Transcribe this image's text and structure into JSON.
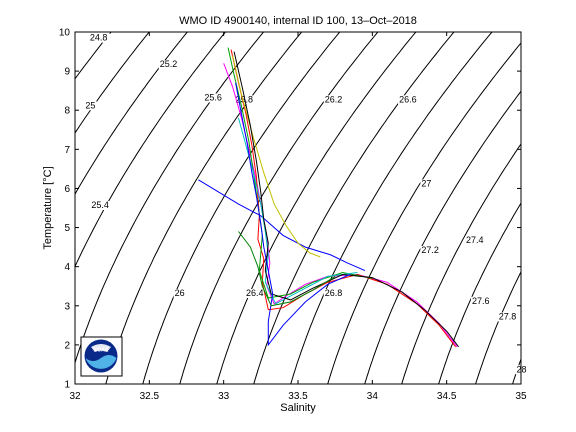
{
  "chart_data": {
    "type": "line",
    "title": "WMO ID 4900140, internal ID 100, 13–Oct–2018",
    "xlabel": "Salinity",
    "ylabel": "Temperature [°C]",
    "xlim": [
      32,
      35
    ],
    "ylim": [
      1,
      10
    ],
    "x_ticks": [
      "32",
      "32.5",
      "33",
      "33.5",
      "34",
      "34.5",
      "35"
    ],
    "y_ticks": [
      "1",
      "2",
      "3",
      "4",
      "5",
      "6",
      "7",
      "8",
      "9",
      "10"
    ],
    "x_tick_values": [
      32,
      32.5,
      33,
      33.5,
      34,
      34.5,
      35
    ],
    "y_tick_values": [
      1,
      2,
      3,
      4,
      5,
      6,
      7,
      8,
      9,
      10
    ],
    "grid": false,
    "logo": {
      "text": "NOAA",
      "icon": "noaa-logo"
    },
    "density_contours": [
      {
        "label": "24.8",
        "value": 24.8
      },
      {
        "label": "25",
        "value": 25.0
      },
      {
        "label": "25.2",
        "value": 25.2
      },
      {
        "label": "25.4",
        "value": 25.4
      },
      {
        "label": "25.6",
        "value": 25.6
      },
      {
        "label": "25.8",
        "value": 25.8
      },
      {
        "label": "26",
        "value": 26.0
      },
      {
        "label": "26.2",
        "value": 26.2
      },
      {
        "label": "26.4",
        "value": 26.4
      },
      {
        "label": "26.6",
        "value": 26.6
      },
      {
        "label": "26.8",
        "value": 26.8
      },
      {
        "label": "27",
        "value": 27.0
      },
      {
        "label": "27.2",
        "value": 27.2
      },
      {
        "label": "27.4",
        "value": 27.4
      },
      {
        "label": "27.6",
        "value": 27.6
      },
      {
        "label": "27.8",
        "value": 27.8
      },
      {
        "label": "28",
        "value": 28.0
      }
    ],
    "contour_label_points": [
      {
        "label": "24.8",
        "s": 32.1,
        "t": 9.78
      },
      {
        "label": "25.2",
        "s": 32.57,
        "t": 9.1
      },
      {
        "label": "25",
        "s": 32.07,
        "t": 8.05
      },
      {
        "label": "25.6",
        "s": 32.87,
        "t": 8.25
      },
      {
        "label": "25.8",
        "s": 33.08,
        "t": 8.2
      },
      {
        "label": "26.2",
        "s": 33.68,
        "t": 8.2
      },
      {
        "label": "26.6",
        "s": 34.18,
        "t": 8.2
      },
      {
        "label": "25.4",
        "s": 32.11,
        "t": 5.5
      },
      {
        "label": "27",
        "s": 34.33,
        "t": 6.05
      },
      {
        "label": "27.4",
        "s": 34.63,
        "t": 4.6
      },
      {
        "label": "27.2",
        "s": 34.33,
        "t": 4.35
      },
      {
        "label": "26",
        "s": 32.67,
        "t": 3.25
      },
      {
        "label": "26.4",
        "s": 33.15,
        "t": 3.25
      },
      {
        "label": "26.8",
        "s": 33.68,
        "t": 3.25
      },
      {
        "label": "27.6",
        "s": 34.67,
        "t": 3.05
      },
      {
        "label": "27.8",
        "s": 34.85,
        "t": 2.65
      },
      {
        "label": "28",
        "s": 34.97,
        "t": 1.3
      }
    ],
    "series": [
      {
        "color": "#0000ff",
        "points": [
          [
            32.83,
            6.22
          ],
          [
            33.1,
            5.6
          ],
          [
            33.25,
            5.3
          ],
          [
            33.4,
            4.8
          ],
          [
            33.55,
            4.5
          ],
          [
            33.72,
            4.3
          ],
          [
            33.83,
            4.1
          ],
          [
            33.95,
            3.9
          ]
        ]
      },
      {
        "color": "#ff00ff",
        "points": [
          [
            33.0,
            9.2
          ],
          [
            33.06,
            8.6
          ],
          [
            33.12,
            7.8
          ],
          [
            33.17,
            7.0
          ],
          [
            33.22,
            6.2
          ],
          [
            33.26,
            5.4
          ],
          [
            33.29,
            4.8
          ],
          [
            33.31,
            4.1
          ],
          [
            33.29,
            3.5
          ],
          [
            33.34,
            3.05
          ],
          [
            33.42,
            3.25
          ],
          [
            33.55,
            3.55
          ],
          [
            33.7,
            3.75
          ],
          [
            33.9,
            3.8
          ],
          [
            34.1,
            3.6
          ],
          [
            34.3,
            3.1
          ],
          [
            34.45,
            2.55
          ],
          [
            34.57,
            1.95
          ]
        ]
      },
      {
        "color": "#ff0000",
        "points": [
          [
            33.05,
            9.55
          ],
          [
            33.1,
            8.7
          ],
          [
            33.15,
            7.9
          ],
          [
            33.19,
            7.1
          ],
          [
            33.22,
            6.3
          ],
          [
            33.24,
            5.3
          ],
          [
            33.23,
            4.7
          ],
          [
            33.27,
            4.2
          ],
          [
            33.26,
            3.6
          ],
          [
            33.3,
            2.9
          ],
          [
            33.4,
            2.95
          ],
          [
            33.55,
            3.3
          ],
          [
            33.7,
            3.6
          ],
          [
            33.9,
            3.8
          ],
          [
            34.1,
            3.55
          ],
          [
            34.3,
            3.05
          ],
          [
            34.45,
            2.5
          ],
          [
            34.56,
            1.95
          ]
        ]
      },
      {
        "color": "#00a000",
        "points": [
          [
            33.03,
            9.6
          ],
          [
            33.07,
            8.9
          ],
          [
            33.12,
            8.1
          ],
          [
            33.17,
            7.2
          ],
          [
            33.2,
            6.4
          ],
          [
            33.23,
            5.6
          ],
          [
            33.26,
            4.8
          ],
          [
            33.24,
            3.9
          ],
          [
            33.3,
            3.2
          ],
          [
            33.45,
            3.3
          ],
          [
            33.6,
            3.6
          ],
          [
            33.8,
            3.85
          ],
          [
            34.0,
            3.7
          ]
        ]
      },
      {
        "color": "#00c0c0",
        "points": [
          [
            33.1,
            7.8
          ],
          [
            33.15,
            7.1
          ],
          [
            33.2,
            6.4
          ],
          [
            33.25,
            5.6
          ],
          [
            33.28,
            4.9
          ],
          [
            33.3,
            4.3
          ],
          [
            33.28,
            3.6
          ],
          [
            33.35,
            3.05
          ],
          [
            33.5,
            3.35
          ],
          [
            33.7,
            3.75
          ],
          [
            33.9,
            3.85
          ]
        ]
      },
      {
        "color": "#c0c000",
        "points": [
          [
            33.06,
            9.4
          ],
          [
            33.12,
            8.4
          ],
          [
            33.2,
            7.3
          ],
          [
            33.27,
            6.4
          ],
          [
            33.34,
            5.6
          ],
          [
            33.42,
            5.05
          ],
          [
            33.5,
            4.6
          ],
          [
            33.58,
            4.35
          ],
          [
            33.65,
            4.25
          ]
        ]
      },
      {
        "color": "#000000",
        "points": [
          [
            33.07,
            9.5
          ],
          [
            33.13,
            8.5
          ],
          [
            33.18,
            7.6
          ],
          [
            33.22,
            6.7
          ],
          [
            33.25,
            5.9
          ],
          [
            33.27,
            5.2
          ],
          [
            33.3,
            4.6
          ],
          [
            33.28,
            3.9
          ],
          [
            33.32,
            3.3
          ],
          [
            33.45,
            3.15
          ],
          [
            33.6,
            3.45
          ],
          [
            33.8,
            3.8
          ],
          [
            34.0,
            3.72
          ],
          [
            34.2,
            3.35
          ],
          [
            34.35,
            2.9
          ],
          [
            34.5,
            2.35
          ],
          [
            34.58,
            1.95
          ]
        ]
      },
      {
        "color": "#0000ff",
        "points": [
          [
            33.08,
            8.7
          ],
          [
            33.12,
            7.9
          ],
          [
            33.16,
            7.1
          ],
          [
            33.19,
            6.4
          ],
          [
            33.22,
            5.8
          ],
          [
            33.25,
            5.1
          ],
          [
            33.27,
            4.5
          ],
          [
            33.3,
            3.9
          ],
          [
            33.33,
            3.3
          ],
          [
            33.3,
            2.6
          ],
          [
            33.3,
            2.0
          ],
          [
            33.4,
            2.5
          ],
          [
            33.55,
            3.1
          ],
          [
            33.7,
            3.55
          ],
          [
            33.85,
            3.8
          ]
        ]
      },
      {
        "color": "#008000",
        "points": [
          [
            33.1,
            4.9
          ],
          [
            33.18,
            4.5
          ],
          [
            33.23,
            4.0
          ],
          [
            33.26,
            3.5
          ],
          [
            33.32,
            3.0
          ],
          [
            33.45,
            3.1
          ],
          [
            33.6,
            3.4
          ],
          [
            33.75,
            3.75
          ]
        ]
      }
    ]
  }
}
